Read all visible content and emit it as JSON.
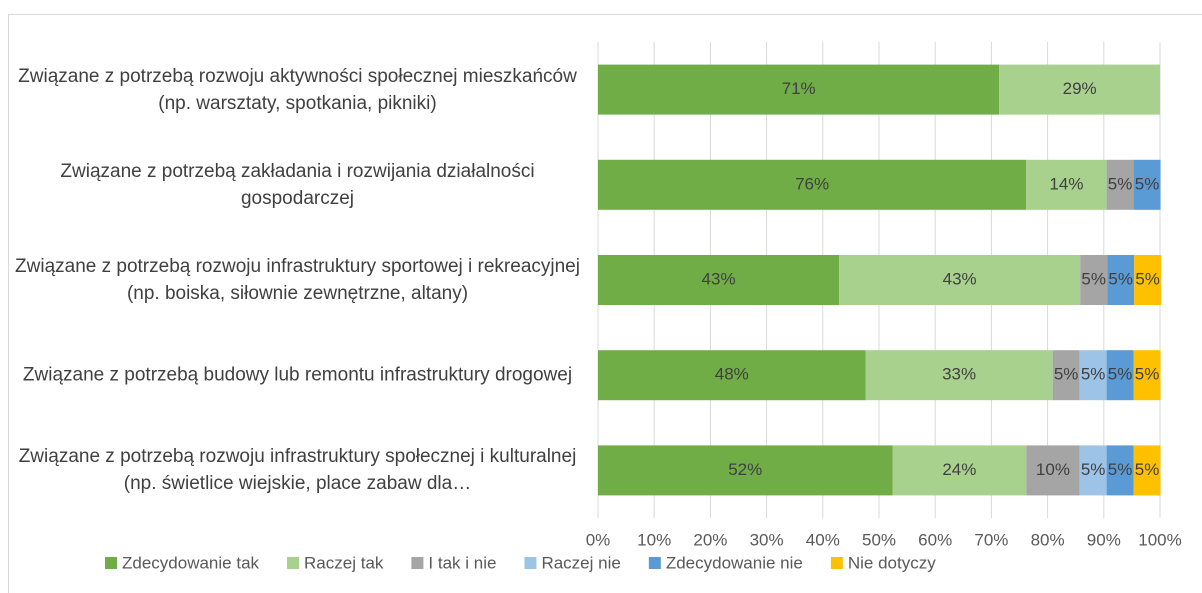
{
  "chart_data": {
    "type": "bar",
    "orientation": "horizontal",
    "stacked": true,
    "categories": [
      "Związane z potrzebą rozwoju aktywności społecznej mieszkańców (np. warsztaty, spotkania, pikniki)",
      "Związane z potrzebą zakładania i rozwijania działalności gospodarczej",
      "Związane z potrzebą rozwoju infrastruktury sportowej i rekreacyjnej (np. boiska, siłownie zewnętrzne, altany)",
      "Związane z potrzebą budowy lub remontu infrastruktury drogowej",
      "Związane z potrzebą rozwoju infrastruktury społecznej i kulturalnej (np. świetlice wiejskie, place zabaw dla…"
    ],
    "series": [
      {
        "name": "Zdecydowanie tak",
        "color": "#70ad47",
        "values": [
          71.4,
          76.2,
          42.9,
          47.6,
          52.4
        ],
        "value_labels": [
          "71%",
          "76%",
          "43%",
          "48%",
          "52%"
        ]
      },
      {
        "name": "Raczej tak",
        "color": "#a9d18e",
        "values": [
          28.6,
          14.3,
          42.9,
          33.3,
          23.8
        ],
        "value_labels": [
          "29%",
          "14%",
          "43%",
          "33%",
          "24%"
        ]
      },
      {
        "name": "I tak i nie",
        "color": "#a5a5a5",
        "values": [
          0,
          4.8,
          4.8,
          4.8,
          9.5
        ],
        "value_labels": [
          null,
          "5%",
          "5%",
          "5%",
          "10%"
        ]
      },
      {
        "name": "Raczej nie",
        "color": "#9dc3e6",
        "values": [
          0,
          0,
          0,
          4.8,
          4.8
        ],
        "value_labels": [
          null,
          null,
          null,
          "5%",
          "5%"
        ]
      },
      {
        "name": "Zdecydowanie nie",
        "color": "#5b9bd5",
        "values": [
          0,
          4.8,
          4.8,
          4.8,
          4.8
        ],
        "value_labels": [
          null,
          "5%",
          "5%",
          "5%",
          "5%"
        ]
      },
      {
        "name": "Nie dotyczy",
        "color": "#ffc000",
        "values": [
          0,
          0,
          4.8,
          4.8,
          4.8
        ],
        "value_labels": [
          null,
          null,
          "5%",
          "5%",
          "5%"
        ]
      }
    ],
    "xlim": [
      0,
      100
    ],
    "xticks": [
      {
        "value": 0,
        "label": "0%"
      },
      {
        "value": 10,
        "label": "10%"
      },
      {
        "value": 20,
        "label": "20%"
      },
      {
        "value": 30,
        "label": "30%"
      },
      {
        "value": 40,
        "label": "40%"
      },
      {
        "value": 50,
        "label": "50%"
      },
      {
        "value": 60,
        "label": "60%"
      },
      {
        "value": 70,
        "label": "70%"
      },
      {
        "value": 80,
        "label": "80%"
      },
      {
        "value": 90,
        "label": "90%"
      },
      {
        "value": 100,
        "label": "100%"
      }
    ],
    "grid": true,
    "legend": "bottom"
  }
}
